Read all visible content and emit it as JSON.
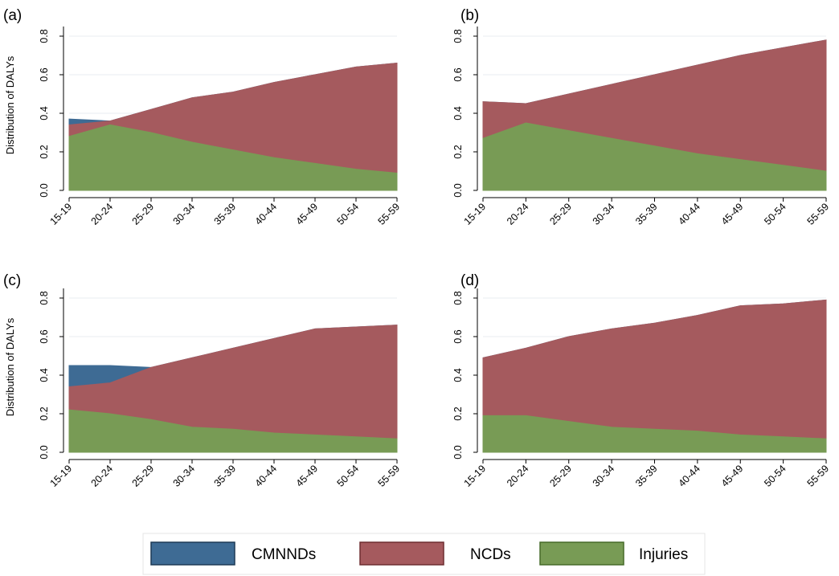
{
  "legend": {
    "entries": [
      {
        "label": "CMNNDs",
        "color": "#3e6b94",
        "stroke": "#1f3b57"
      },
      {
        "label": "NCDs",
        "color": "#a55a5e",
        "stroke": "#6e2e31"
      },
      {
        "label": "Injuries",
        "color": "#789b55",
        "stroke": "#476b2a"
      }
    ]
  },
  "chart_data": [
    {
      "type": "area",
      "panel_label": "(a)",
      "ylabel": "Distribution of DALYs",
      "categories": [
        "15-19",
        "20-24",
        "25-29",
        "30-34",
        "35-39",
        "40-44",
        "45-49",
        "50-54",
        "55-59"
      ],
      "yticks": [
        0.0,
        0.2,
        0.4,
        0.6,
        0.8
      ],
      "ytick_labels": [
        "0.0",
        "0.2",
        "0.4",
        "0.6",
        "0.8"
      ],
      "ylim": [
        0,
        0.85
      ],
      "grid": true,
      "series": [
        {
          "name": "CMNNDs",
          "values": [
            0.37,
            0.36,
            0.42,
            0.48,
            0.51,
            0.56,
            0.6,
            0.64,
            0.66
          ]
        },
        {
          "name": "NCDs",
          "values": [
            0.34,
            0.36,
            0.42,
            0.48,
            0.51,
            0.56,
            0.6,
            0.64,
            0.66
          ]
        },
        {
          "name": "Injuries",
          "values": [
            0.28,
            0.34,
            0.3,
            0.25,
            0.21,
            0.17,
            0.14,
            0.11,
            0.09
          ]
        }
      ]
    },
    {
      "type": "area",
      "panel_label": "(b)",
      "ylabel": "",
      "categories": [
        "15-19",
        "20-24",
        "25-29",
        "30-34",
        "35-39",
        "40-44",
        "45-49",
        "50-54",
        "55-59"
      ],
      "yticks": [
        0.0,
        0.2,
        0.4,
        0.6,
        0.8
      ],
      "ytick_labels": [
        "0.0",
        "0.2",
        "0.4",
        "0.6",
        "0.8"
      ],
      "ylim": [
        0,
        0.85
      ],
      "grid": true,
      "series": [
        {
          "name": "CMNNDs",
          "values": [
            0.46,
            0.45,
            0.5,
            0.55,
            0.6,
            0.65,
            0.7,
            0.74,
            0.78
          ]
        },
        {
          "name": "NCDs",
          "values": [
            0.46,
            0.45,
            0.5,
            0.55,
            0.6,
            0.65,
            0.7,
            0.74,
            0.78
          ]
        },
        {
          "name": "Injuries",
          "values": [
            0.27,
            0.35,
            0.31,
            0.27,
            0.23,
            0.19,
            0.16,
            0.13,
            0.1
          ]
        }
      ]
    },
    {
      "type": "area",
      "panel_label": "(c)",
      "ylabel": "Distribution of DALYs",
      "categories": [
        "15-19",
        "20-24",
        "25-29",
        "30-34",
        "35-39",
        "40-44",
        "45-49",
        "50-54",
        "55-59"
      ],
      "yticks": [
        0.0,
        0.2,
        0.4,
        0.6,
        0.8
      ],
      "ytick_labels": [
        "0.0",
        "0.2",
        "0.4",
        "0.6",
        "0.8"
      ],
      "ylim": [
        0,
        0.85
      ],
      "grid": true,
      "series": [
        {
          "name": "CMNNDs",
          "values": [
            0.45,
            0.45,
            0.44,
            0.49,
            0.54,
            0.59,
            0.64,
            0.65,
            0.66
          ]
        },
        {
          "name": "NCDs",
          "values": [
            0.34,
            0.36,
            0.44,
            0.49,
            0.54,
            0.59,
            0.64,
            0.65,
            0.66
          ]
        },
        {
          "name": "Injuries",
          "values": [
            0.22,
            0.2,
            0.17,
            0.13,
            0.12,
            0.1,
            0.09,
            0.08,
            0.07
          ]
        }
      ]
    },
    {
      "type": "area",
      "panel_label": "(d)",
      "ylabel": "",
      "categories": [
        "15-19",
        "20-24",
        "25-29",
        "30-34",
        "35-39",
        "40-44",
        "45-49",
        "50-54",
        "55-59"
      ],
      "yticks": [
        0.0,
        0.2,
        0.4,
        0.6,
        0.8
      ],
      "ytick_labels": [
        "0.0",
        "0.2",
        "0.4",
        "0.6",
        "0.8"
      ],
      "ylim": [
        0,
        0.85
      ],
      "grid": true,
      "series": [
        {
          "name": "CMNNDs",
          "values": [
            0.49,
            0.54,
            0.6,
            0.64,
            0.67,
            0.71,
            0.76,
            0.77,
            0.79
          ]
        },
        {
          "name": "NCDs",
          "values": [
            0.49,
            0.54,
            0.6,
            0.64,
            0.67,
            0.71,
            0.76,
            0.77,
            0.79
          ]
        },
        {
          "name": "Injuries",
          "values": [
            0.19,
            0.19,
            0.16,
            0.13,
            0.12,
            0.11,
            0.09,
            0.08,
            0.07
          ]
        }
      ]
    }
  ]
}
